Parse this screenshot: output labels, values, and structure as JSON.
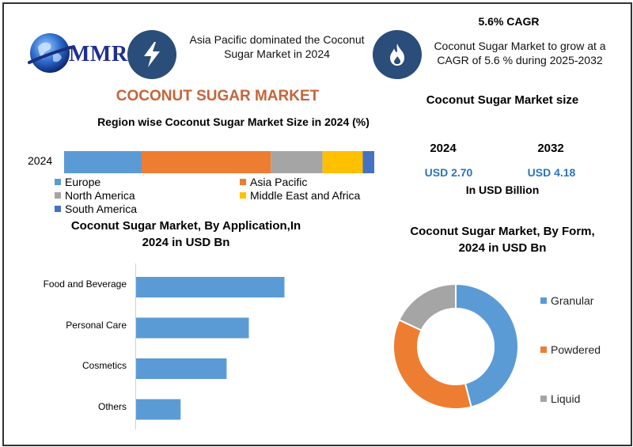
{
  "header": {
    "logo_text": "MMR",
    "region_text_line1": "Asia Pacific dominated the Coconut",
    "region_text_line2": "Sugar Market in 2024",
    "cagr_title": "5.6% CAGR",
    "cagr_text_line1": "Coconut Sugar Market to grow at a",
    "cagr_text_line2": "CAGR of 5.6 % during 2025-2032"
  },
  "main_title": "COCONUT SUGAR MARKET",
  "size_panel": {
    "title": "Coconut Sugar Market size",
    "year1": "2024",
    "year2": "2032",
    "value1": "USD 2.70",
    "value2": "USD 4.18",
    "unit": "In USD Billion"
  },
  "colors": {
    "europe": "#5b9bd5",
    "asia_pacific": "#ed7d31",
    "north_america": "#a5a5a5",
    "mea": "#ffc000",
    "south_america": "#4472c4",
    "bar": "#5b9bd5",
    "granular": "#5b9bd5",
    "powdered": "#ed7d31",
    "liquid": "#a5a5a5"
  },
  "chart_data": [
    {
      "type": "bar",
      "orientation": "horizontal-stacked",
      "title": "Region wise Coconut Sugar Market Size in 2024 (%)",
      "categories": [
        "2024"
      ],
      "series": [
        {
          "name": "Europe",
          "values": [
            27
          ]
        },
        {
          "name": "Asia Pacific",
          "values": [
            45
          ]
        },
        {
          "name": "North America",
          "values": [
            18
          ]
        },
        {
          "name": "Middle East and Africa",
          "values": [
            14
          ]
        },
        {
          "name": "South America",
          "values": [
            4
          ]
        }
      ],
      "legend": "bottom"
    },
    {
      "type": "bar",
      "orientation": "horizontal",
      "title_line1": "Coconut Sugar Market, By  Application,In",
      "title_line2": "2024 in USD Bn",
      "categories": [
        "Food and Beverage",
        "Personal Care",
        "Cosmetics",
        "Others"
      ],
      "values": [
        1.0,
        0.76,
        0.61,
        0.3
      ],
      "xlim": [
        0,
        1.6
      ]
    },
    {
      "type": "pie",
      "style": "donut",
      "title_line1": "Coconut Sugar Market, By Form,",
      "title_line2": "2024 in USD Bn",
      "labels": [
        "Granular",
        "Powdered",
        "Liquid"
      ],
      "values": [
        46,
        36,
        18
      ],
      "legend": "right"
    }
  ]
}
